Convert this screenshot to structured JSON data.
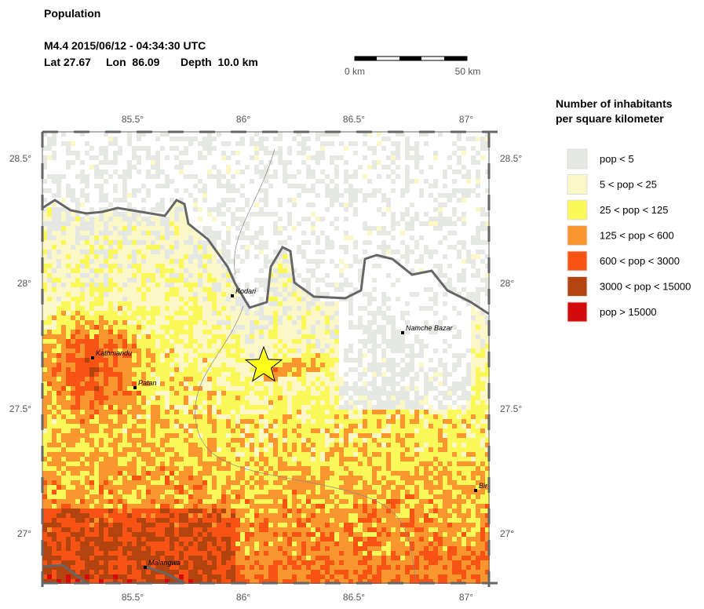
{
  "header": {
    "title": "Population",
    "event": "M4.4  2015/06/12 - 04:34:30 UTC",
    "lat": "Lat 27.67",
    "lon": "Lon  86.09",
    "depth": "Depth  10.0 km"
  },
  "scale_bar": {
    "start": "0 km",
    "end": "50 km"
  },
  "map": {
    "lon_labels": [
      "85.5°",
      "86°",
      "86.5°",
      "87°"
    ],
    "lat_labels": [
      "28.5°",
      "28°",
      "27.5°",
      "27°"
    ],
    "cities": [
      "Kathmandu",
      "Patan",
      "Kodari",
      "Namche Bazar",
      "Bir",
      "Malangwa"
    ]
  },
  "legend": {
    "title": [
      "Number of inhabitants",
      "per square kilometer"
    ],
    "entries": [
      {
        "label": "pop < 5",
        "color": "#e6e8e4"
      },
      {
        "label": "5 < pop < 25",
        "color": "#fcf7c6"
      },
      {
        "label": "25 < pop < 125",
        "color": "#fbf85a"
      },
      {
        "label": "125 < pop < 600",
        "color": "#f9962d"
      },
      {
        "label": "600 < pop < 3000",
        "color": "#f75314"
      },
      {
        "label": "3000 < pop < 15000",
        "color": "#b34410"
      },
      {
        "label": "pop > 15000",
        "color": "#d40b0b"
      }
    ]
  }
}
